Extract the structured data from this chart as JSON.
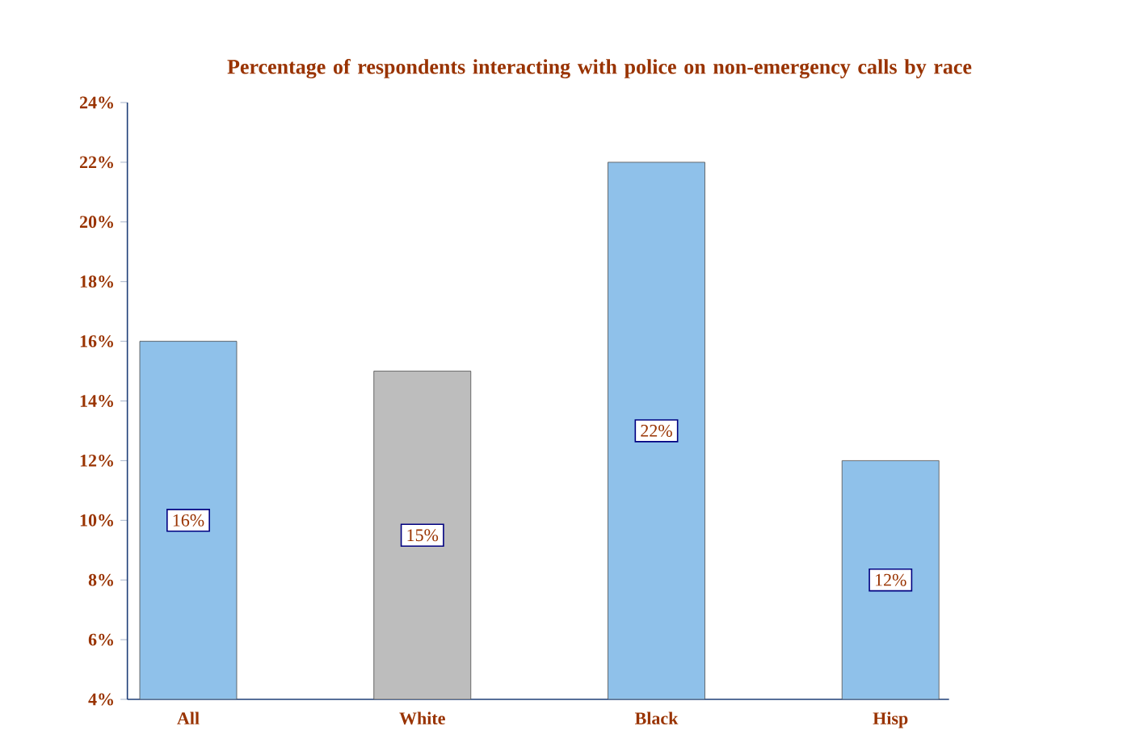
{
  "chart_data": {
    "type": "bar",
    "title": "Percentage of respondents interacting with police on non-emergency calls by race",
    "categories": [
      "All",
      "White",
      "Black",
      "Hisp"
    ],
    "values": [
      16,
      15,
      22,
      12
    ],
    "colors": [
      "#8fc1ea",
      "#bdbdbd",
      "#8fc1ea",
      "#8fc1ea"
    ],
    "value_labels": [
      "16%",
      "15%",
      "22%",
      "12%"
    ],
    "ylim": [
      4,
      24
    ],
    "yticks": [
      {
        "value": 4,
        "label": "4%"
      },
      {
        "value": 6,
        "label": "6%"
      },
      {
        "value": 8,
        "label": "8%"
      },
      {
        "value": 10,
        "label": "10%"
      },
      {
        "value": 12,
        "label": "12%"
      },
      {
        "value": 14,
        "label": "14%"
      },
      {
        "value": 16,
        "label": "16%"
      },
      {
        "value": 18,
        "label": "18%"
      },
      {
        "value": 20,
        "label": "20%"
      },
      {
        "value": 22,
        "label": "22%"
      },
      {
        "value": 24,
        "label": "24%"
      }
    ],
    "grid": false
  }
}
